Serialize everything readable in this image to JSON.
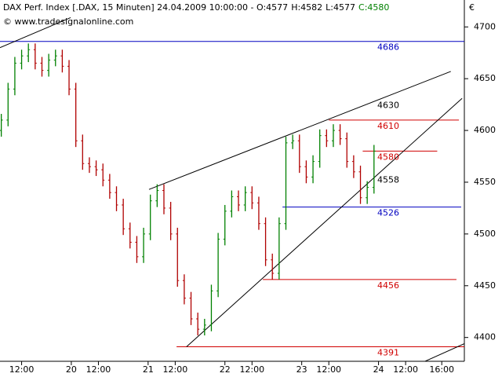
{
  "chart_data": {
    "type": "ohlc",
    "title": "DAX Perf. Index [.DAX, 15 Minuten]",
    "timestamp": "24.04.2009 10:00:00",
    "quote": [
      "O:4577",
      "H:4582",
      "L:4577",
      "C:4580"
    ],
    "quote_colors": [
      "#000000",
      "#000000",
      "#000000",
      "#008000"
    ],
    "copyright": "© www.tradesignalonline.com",
    "currency": "€",
    "up_color": "#008000",
    "down_color": "#b00000",
    "xlim": [
      2.43,
      208
    ],
    "ylim": [
      4377,
      4726
    ],
    "yticks": [
      4400,
      4450,
      4500,
      4550,
      4600,
      4650,
      4700
    ],
    "xticks": [
      {
        "value": 12,
        "label": "12:00"
      },
      {
        "value": 34,
        "label": "20"
      },
      {
        "value": 46,
        "label": "12:00"
      },
      {
        "value": 68,
        "label": "21"
      },
      {
        "value": 80,
        "label": "12:00"
      },
      {
        "value": 102,
        "label": "22"
      },
      {
        "value": 114,
        "label": "12:00"
      },
      {
        "value": 136,
        "label": "23"
      },
      {
        "value": 148,
        "label": "12:00"
      },
      {
        "value": 170,
        "label": "24"
      },
      {
        "value": 182,
        "label": "12:00"
      },
      {
        "value": 198,
        "label": "16:00"
      }
    ],
    "x": [
      3,
      6,
      9,
      12,
      15,
      18,
      21,
      24,
      27,
      30,
      33,
      36,
      39,
      42,
      45,
      48,
      51,
      54,
      57,
      60,
      63,
      66,
      69,
      72,
      75,
      78,
      81,
      84,
      87,
      90,
      93,
      96,
      99,
      102,
      105,
      108,
      111,
      114,
      117,
      120,
      123,
      126,
      129,
      132,
      135,
      138,
      141,
      144,
      147,
      150,
      153,
      156,
      159,
      162,
      165,
      168
    ],
    "open": [
      4600,
      4610,
      4640,
      4665,
      4672,
      4678,
      4665,
      4658,
      4668,
      4672,
      4662,
      4640,
      4590,
      4568,
      4565,
      4562,
      4552,
      4540,
      4528,
      4505,
      4492,
      4478,
      4500,
      4532,
      4542,
      4525,
      4500,
      4455,
      4438,
      4418,
      4408,
      4412,
      4445,
      4495,
      4522,
      4536,
      4528,
      4540,
      4530,
      4510,
      4475,
      4462,
      4510,
      4588,
      4590,
      4565,
      4555,
      4570,
      4595,
      4590,
      4600,
      4592,
      4570,
      4560,
      4535,
      4545
    ],
    "high": [
      4616,
      4646,
      4671,
      4678,
      4684,
      4684,
      4671,
      4674,
      4678,
      4678,
      4668,
      4646,
      4596,
      4574,
      4571,
      4568,
      4558,
      4546,
      4534,
      4511,
      4498,
      4506,
      4538,
      4548,
      4548,
      4531,
      4506,
      4461,
      4444,
      4424,
      4418,
      4451,
      4501,
      4528,
      4542,
      4542,
      4546,
      4546,
      4536,
      4516,
      4481,
      4516,
      4594,
      4596,
      4596,
      4571,
      4576,
      4601,
      4601,
      4606,
      4606,
      4598,
      4576,
      4566,
      4551,
      4586
    ],
    "low": [
      4594,
      4604,
      4634,
      4659,
      4666,
      4659,
      4652,
      4652,
      4662,
      4656,
      4634,
      4584,
      4562,
      4559,
      4556,
      4546,
      4534,
      4522,
      4499,
      4486,
      4472,
      4472,
      4494,
      4526,
      4519,
      4494,
      4449,
      4432,
      4412,
      4402,
      4402,
      4406,
      4439,
      4489,
      4516,
      4522,
      4522,
      4524,
      4504,
      4469,
      4456,
      4456,
      4504,
      4582,
      4559,
      4549,
      4549,
      4564,
      4584,
      4584,
      4586,
      4564,
      4554,
      4529,
      4529,
      4539
    ],
    "close": [
      4610,
      4640,
      4665,
      4672,
      4678,
      4665,
      4658,
      4668,
      4672,
      4662,
      4640,
      4590,
      4568,
      4565,
      4562,
      4552,
      4540,
      4528,
      4505,
      4492,
      4478,
      4500,
      4532,
      4542,
      4525,
      4500,
      4455,
      4438,
      4418,
      4408,
      4412,
      4445,
      4495,
      4522,
      4536,
      4528,
      4540,
      4530,
      4510,
      4475,
      4462,
      4510,
      4588,
      4590,
      4565,
      4555,
      4570,
      4595,
      4590,
      4600,
      4592,
      4570,
      4560,
      4535,
      4545,
      4580
    ],
    "levels": [
      {
        "value": 4686,
        "label": "4686",
        "color": "#0000c0",
        "from": 2.43,
        "to": 208
      },
      {
        "value": 4630,
        "label": "4630",
        "color": "#000000"
      },
      {
        "value": 4610,
        "label": "4610",
        "color": "#d00000",
        "from": 148,
        "to": 205.6
      },
      {
        "value": 4580,
        "label": "4580",
        "color": "#d00000",
        "from": 163,
        "to": 196
      },
      {
        "value": 4558,
        "label": "4558",
        "color": "#000000"
      },
      {
        "value": 4526,
        "label": "4526",
        "color": "#0000c0",
        "from": 127.5,
        "to": 206.6
      },
      {
        "value": 4456,
        "label": "4456",
        "color": "#d00000",
        "from": 118.8,
        "to": 204.5
      },
      {
        "value": 4391,
        "label": "4391",
        "color": "#d00000",
        "from": 80.6,
        "to": 208
      }
    ],
    "trendlines": [
      [
        [
          2.43,
          4680
        ],
        [
          33.7,
          4709
        ]
      ],
      [
        [
          68.4,
          4543
        ],
        [
          202,
          4657
        ]
      ],
      [
        [
          85,
          4391
        ],
        [
          207,
          4631
        ]
      ],
      [
        [
          186.5,
          4373
        ],
        [
          209,
          4395
        ]
      ]
    ]
  }
}
